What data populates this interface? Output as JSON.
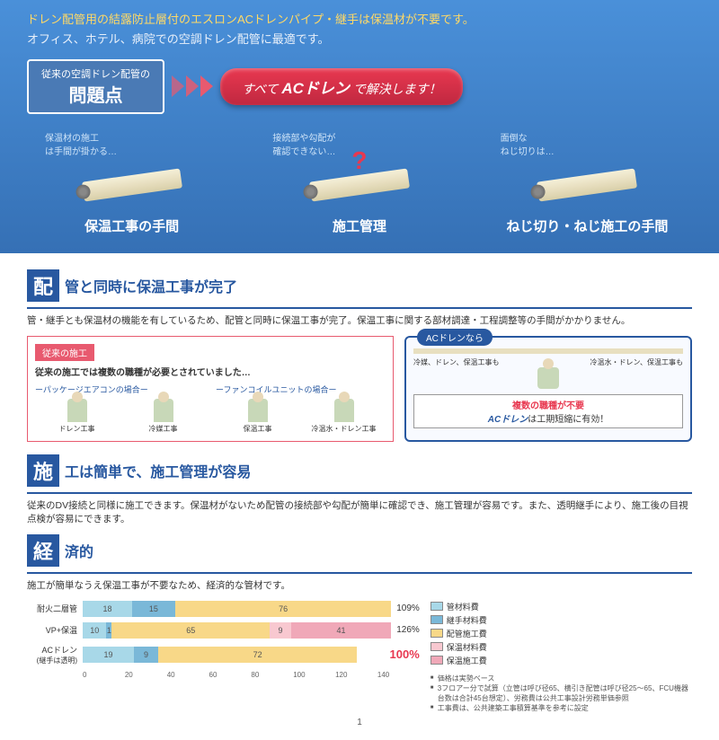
{
  "hero": {
    "line1": "ドレン配管用の結露防止層付のエスロンACドレンパイプ・継手は保温材が不要です。",
    "line2": "オフィス、ホテル、病院での空調ドレン配管に最適です。"
  },
  "problem": {
    "badge_small": "従来の空調ドレン配管の",
    "badge_big": "問題点",
    "solve_pre": "すべて",
    "solve_bold": "ACドレン",
    "solve_post": "で解決します！"
  },
  "pipes": [
    {
      "cap": "保温材の施工\nは手間が掛かる…",
      "label": "保温工事の手間",
      "q": false
    },
    {
      "cap": "接続部や勾配が\n確認できない…",
      "label": "施工管理",
      "q": true
    },
    {
      "cap": "面倒な\nねじ切りは…",
      "label": "ねじ切り・ねじ施工の手間",
      "q": false
    }
  ],
  "sec1": {
    "badge": "配",
    "title": "管と同時に保温工事が完了",
    "body": "管・継手とも保温材の機能を有しているため、配管と同時に保温工事が完了。保温工事に関する部材調達・工程調整等の手間がかかりません。"
  },
  "compare": {
    "old_tag": "従来の施工",
    "old_sub": "従来の施工では複数の職種が必要とされていました…",
    "col1_title": "ーパッケージエアコンの場合ー",
    "col1_workers": [
      "ドレン工事",
      "冷媒工事"
    ],
    "col2_title": "ーファンコイルユニットの場合ー",
    "col2_workers": [
      "保温工事",
      "冷温水・ドレン工事"
    ],
    "new_tag": "ACドレンなら",
    "new_left": "冷媒、ドレン、保温工事も",
    "new_right": "冷温水・ドレン、保温工事も",
    "slogan_red": "複数の職種が不要",
    "slogan_ac": "ACドレン",
    "slogan_rest": "は工期短縮に有効！"
  },
  "sec2": {
    "badge": "施",
    "title": "工は簡単で、施工管理が容易",
    "body": "従来のDV接続と同様に施工できます。保温材がないため配管の接続部や勾配が簡単に確認でき、施工管理が容易です。また、透明継手により、施工後の目視点検が容易にできます。"
  },
  "sec3": {
    "badge": "経",
    "title": "済的",
    "body": "施工が簡単なうえ保温工事が不要なため、経済的な管材です。"
  },
  "chart": {
    "rows": [
      {
        "label": "耐火二層管",
        "segs": [
          {
            "c": "c-pipe",
            "v": 18,
            "w": 16
          },
          {
            "c": "c-joint",
            "v": 15,
            "w": 14
          },
          {
            "c": "c-inst",
            "v": 76,
            "w": 70
          }
        ],
        "pct": "109%"
      },
      {
        "label": "VP+保温",
        "segs": [
          {
            "c": "c-pipe",
            "v": 10,
            "w": 9
          },
          {
            "c": "c-joint",
            "v": 1,
            "w": 2
          },
          {
            "c": "c-inst",
            "v": 65,
            "w": 60
          },
          {
            "c": "c-insmat",
            "v": 9,
            "w": 8
          },
          {
            "c": "c-inswork",
            "v": 41,
            "w": 38
          }
        ],
        "pct": "126%"
      },
      {
        "label": "ACドレン",
        "sub": "(継手は透明)",
        "segs": [
          {
            "c": "c-pipe",
            "v": 19,
            "w": 17
          },
          {
            "c": "c-joint",
            "v": 9,
            "w": 8
          },
          {
            "c": "c-inst",
            "v": 72,
            "w": 66
          }
        ],
        "pct": "100%",
        "hot": true
      }
    ],
    "axis": [
      "0",
      "20",
      "40",
      "60",
      "80",
      "100",
      "120",
      "140"
    ]
  },
  "legend": {
    "items": [
      {
        "c": "#a8d8e8",
        "t": "管材料費"
      },
      {
        "c": "#7ab8d8",
        "t": "継手材料費"
      },
      {
        "c": "#f8d888",
        "t": "配管施工費"
      },
      {
        "c": "#f8c8d0",
        "t": "保温材料費"
      },
      {
        "c": "#f0a8b8",
        "t": "保温施工費"
      }
    ],
    "notes": [
      "価格は実勢ベース",
      "3フロアー分で試算（立管は呼び径65、横引き配管は呼び径25〜65、FCU機器台数は合計45台想定）、労務費は公共工事設計労務単価参照",
      "工事費は、公共建築工事積算基準を参考に設定"
    ]
  },
  "pagenum": "1"
}
